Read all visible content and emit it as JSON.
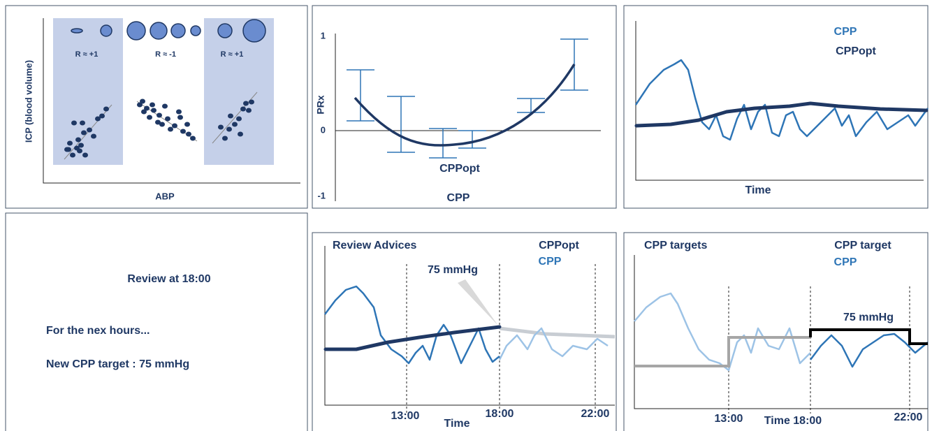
{
  "correlation_panel": {
    "y_label": "ICP (blood volume)",
    "x_label": "ABP",
    "regions": [
      "R ≈ +1",
      "R ≈ -1",
      "R ≈ +1"
    ]
  },
  "prx_panel": {
    "ticks": [
      "1",
      "0",
      "-1"
    ],
    "y_label": "PRx",
    "optimum_label": "CPPopt",
    "x_label": "CPP"
  },
  "trend_panel": {
    "legend": [
      "CPP",
      "CPPopt"
    ],
    "x_label": "Time"
  },
  "advice_panel": {
    "title": "Review at 18:00",
    "lines": [
      "For the nex hours...",
      "New CPP target : 75 mmHg"
    ]
  },
  "review_panel": {
    "title": "Review Advices",
    "legend": [
      "CPPopt",
      "CPP"
    ],
    "annotation": "75 mmHg",
    "times": [
      "13:00",
      "18:00",
      "22:00"
    ],
    "x_label": "Time"
  },
  "targets_panel": {
    "title": "CPP targets",
    "legend": [
      "CPP target",
      "CPP"
    ],
    "annotation": "75 mmHg",
    "times": [
      "13:00",
      "Time 18:00",
      "22:00"
    ]
  }
}
